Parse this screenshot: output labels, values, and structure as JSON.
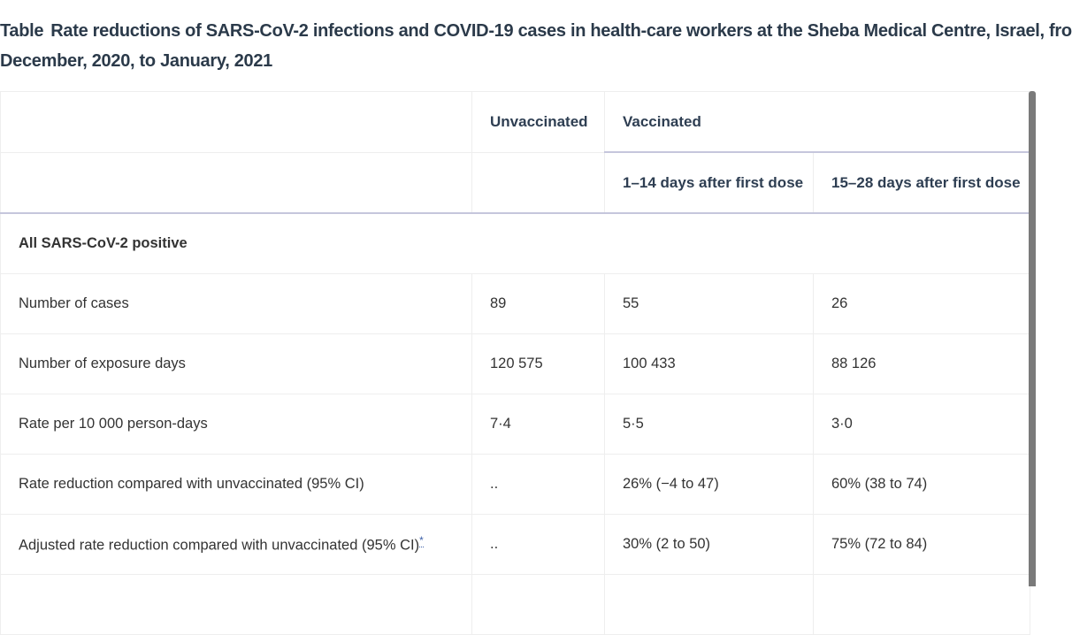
{
  "caption": {
    "label": "Table",
    "text": "Rate reductions of SARS-CoV-2 infections and COVID-19 cases in health-care workers at the Sheba Medical Centre, Israel, fro",
    "text_line2": "December, 2020, to January, 2021"
  },
  "table": {
    "header": {
      "unvaccinated": "Unvaccinated",
      "vaccinated": "Vaccinated",
      "sub_1_14": "1–14 days after first dose",
      "sub_15_28": "15–28 days after first dose"
    },
    "section_title": "All SARS-CoV-2 positive",
    "rows": [
      {
        "label": "Number of cases",
        "unvaccinated": "89",
        "d1_14": "55",
        "d15_28": "26"
      },
      {
        "label": "Number of exposure days",
        "unvaccinated": "120 575",
        "d1_14": "100 433",
        "d15_28": "88 126"
      },
      {
        "label": "Rate per 10 000 person-days",
        "unvaccinated": "7·4",
        "d1_14": "5·5",
        "d15_28": "3·0"
      },
      {
        "label": "Rate reduction compared with unvaccinated (95% CI)",
        "unvaccinated": "..",
        "d1_14": "26% (−4 to 47)",
        "d15_28": "60% (38 to 74)"
      },
      {
        "label": "Adjusted rate reduction compared with unvaccinated (95% CI)",
        "footnote": "*",
        "unvaccinated": "..",
        "d1_14": "30% (2 to 50)",
        "d15_28": "75% (72 to 84)"
      }
    ]
  }
}
